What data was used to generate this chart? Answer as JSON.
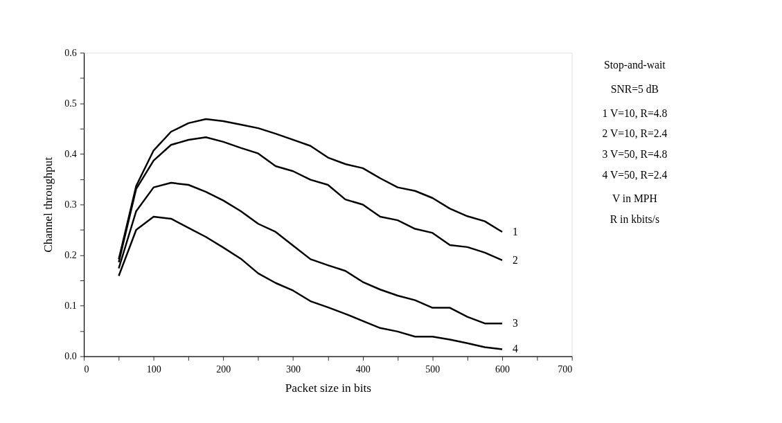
{
  "chart_data": {
    "type": "line",
    "xlabel": "Packet size in bits",
    "ylabel": "Channel throughput",
    "x": [
      50,
      75,
      100,
      125,
      150,
      175,
      200,
      225,
      250,
      275,
      300,
      325,
      350,
      375,
      400,
      425,
      450,
      475,
      500,
      525,
      550,
      575,
      600
    ],
    "series": [
      {
        "name": "1",
        "color": "#000000",
        "values": [
          0.192,
          0.337,
          0.407,
          0.444,
          0.461,
          0.469,
          0.465,
          0.458,
          0.451,
          0.44,
          0.428,
          0.416,
          0.393,
          0.38,
          0.372,
          0.352,
          0.334,
          0.327,
          0.313,
          0.292,
          0.277,
          0.267,
          0.246
        ]
      },
      {
        "name": "2",
        "color": "#000000",
        "values": [
          0.186,
          0.331,
          0.387,
          0.418,
          0.428,
          0.433,
          0.424,
          0.412,
          0.401,
          0.376,
          0.366,
          0.349,
          0.339,
          0.31,
          0.3,
          0.276,
          0.269,
          0.252,
          0.244,
          0.22,
          0.216,
          0.205,
          0.19
        ]
      },
      {
        "name": "3",
        "color": "#000000",
        "values": [
          0.174,
          0.287,
          0.334,
          0.343,
          0.339,
          0.325,
          0.308,
          0.287,
          0.262,
          0.246,
          0.219,
          0.192,
          0.18,
          0.169,
          0.147,
          0.132,
          0.12,
          0.111,
          0.096,
          0.096,
          0.078,
          0.065,
          0.065
        ]
      },
      {
        "name": "4",
        "color": "#000000",
        "values": [
          0.159,
          0.25,
          0.276,
          0.272,
          0.254,
          0.236,
          0.215,
          0.193,
          0.164,
          0.145,
          0.13,
          0.109,
          0.097,
          0.084,
          0.07,
          0.056,
          0.049,
          0.039,
          0.039,
          0.033,
          0.026,
          0.018,
          0.014
        ]
      }
    ],
    "xlim": [
      0,
      700
    ],
    "xticks": [
      0,
      {
        "value": 50,
        "label": null
      },
      100,
      {
        "value": 150,
        "label": null
      },
      200,
      {
        "value": 250,
        "label": null
      },
      300,
      {
        "value": 350,
        "label": null
      },
      400,
      {
        "value": 450,
        "label": null
      },
      500,
      {
        "value": 550,
        "label": null
      },
      600,
      {
        "value": 650,
        "label": null
      },
      700
    ],
    "ylim": [
      0,
      0.6
    ],
    "yticks": [
      {
        "value": 0,
        "label": "0.0"
      },
      {
        "value": 0.05,
        "label": null
      },
      0.1,
      {
        "value": 0.15,
        "label": null
      },
      0.2,
      {
        "value": 0.25,
        "label": null
      },
      0.3,
      {
        "value": 0.35,
        "label": null
      },
      0.4,
      {
        "value": 0.45,
        "label": null
      },
      0.5,
      {
        "value": 0.55,
        "label": null
      },
      0.6
    ],
    "grid": false,
    "legend": false,
    "marker": "none",
    "line_style": "solid",
    "annotations": [
      "Stop-and-wait",
      "SNR=5 dB",
      "1 V=10, R=4.8",
      "2 V=10, R=2.4",
      "3 V=50, R=4.8",
      "4 V=50, R=2.4",
      "V in MPH",
      "R in kbits/s"
    ]
  }
}
